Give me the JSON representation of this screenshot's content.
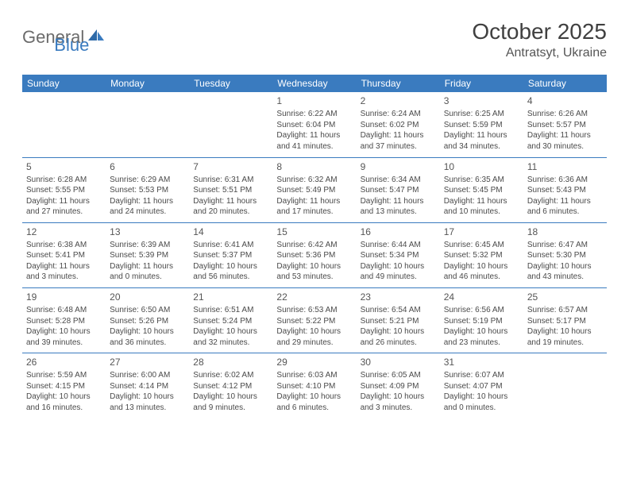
{
  "brand": {
    "general": "General",
    "blue": "Blue"
  },
  "header": {
    "month": "October 2025",
    "location": "Antratsyt, Ukraine"
  },
  "colors": {
    "accent": "#3a7bbf",
    "text": "#4a4a4a",
    "bg": "#ffffff"
  },
  "weekdays": [
    "Sunday",
    "Monday",
    "Tuesday",
    "Wednesday",
    "Thursday",
    "Friday",
    "Saturday"
  ],
  "weeks": [
    [
      null,
      null,
      null,
      {
        "d": "1",
        "sr": "Sunrise: 6:22 AM",
        "ss": "Sunset: 6:04 PM",
        "dl1": "Daylight: 11 hours",
        "dl2": "and 41 minutes."
      },
      {
        "d": "2",
        "sr": "Sunrise: 6:24 AM",
        "ss": "Sunset: 6:02 PM",
        "dl1": "Daylight: 11 hours",
        "dl2": "and 37 minutes."
      },
      {
        "d": "3",
        "sr": "Sunrise: 6:25 AM",
        "ss": "Sunset: 5:59 PM",
        "dl1": "Daylight: 11 hours",
        "dl2": "and 34 minutes."
      },
      {
        "d": "4",
        "sr": "Sunrise: 6:26 AM",
        "ss": "Sunset: 5:57 PM",
        "dl1": "Daylight: 11 hours",
        "dl2": "and 30 minutes."
      }
    ],
    [
      {
        "d": "5",
        "sr": "Sunrise: 6:28 AM",
        "ss": "Sunset: 5:55 PM",
        "dl1": "Daylight: 11 hours",
        "dl2": "and 27 minutes."
      },
      {
        "d": "6",
        "sr": "Sunrise: 6:29 AM",
        "ss": "Sunset: 5:53 PM",
        "dl1": "Daylight: 11 hours",
        "dl2": "and 24 minutes."
      },
      {
        "d": "7",
        "sr": "Sunrise: 6:31 AM",
        "ss": "Sunset: 5:51 PM",
        "dl1": "Daylight: 11 hours",
        "dl2": "and 20 minutes."
      },
      {
        "d": "8",
        "sr": "Sunrise: 6:32 AM",
        "ss": "Sunset: 5:49 PM",
        "dl1": "Daylight: 11 hours",
        "dl2": "and 17 minutes."
      },
      {
        "d": "9",
        "sr": "Sunrise: 6:34 AM",
        "ss": "Sunset: 5:47 PM",
        "dl1": "Daylight: 11 hours",
        "dl2": "and 13 minutes."
      },
      {
        "d": "10",
        "sr": "Sunrise: 6:35 AM",
        "ss": "Sunset: 5:45 PM",
        "dl1": "Daylight: 11 hours",
        "dl2": "and 10 minutes."
      },
      {
        "d": "11",
        "sr": "Sunrise: 6:36 AM",
        "ss": "Sunset: 5:43 PM",
        "dl1": "Daylight: 11 hours",
        "dl2": "and 6 minutes."
      }
    ],
    [
      {
        "d": "12",
        "sr": "Sunrise: 6:38 AM",
        "ss": "Sunset: 5:41 PM",
        "dl1": "Daylight: 11 hours",
        "dl2": "and 3 minutes."
      },
      {
        "d": "13",
        "sr": "Sunrise: 6:39 AM",
        "ss": "Sunset: 5:39 PM",
        "dl1": "Daylight: 11 hours",
        "dl2": "and 0 minutes."
      },
      {
        "d": "14",
        "sr": "Sunrise: 6:41 AM",
        "ss": "Sunset: 5:37 PM",
        "dl1": "Daylight: 10 hours",
        "dl2": "and 56 minutes."
      },
      {
        "d": "15",
        "sr": "Sunrise: 6:42 AM",
        "ss": "Sunset: 5:36 PM",
        "dl1": "Daylight: 10 hours",
        "dl2": "and 53 minutes."
      },
      {
        "d": "16",
        "sr": "Sunrise: 6:44 AM",
        "ss": "Sunset: 5:34 PM",
        "dl1": "Daylight: 10 hours",
        "dl2": "and 49 minutes."
      },
      {
        "d": "17",
        "sr": "Sunrise: 6:45 AM",
        "ss": "Sunset: 5:32 PM",
        "dl1": "Daylight: 10 hours",
        "dl2": "and 46 minutes."
      },
      {
        "d": "18",
        "sr": "Sunrise: 6:47 AM",
        "ss": "Sunset: 5:30 PM",
        "dl1": "Daylight: 10 hours",
        "dl2": "and 43 minutes."
      }
    ],
    [
      {
        "d": "19",
        "sr": "Sunrise: 6:48 AM",
        "ss": "Sunset: 5:28 PM",
        "dl1": "Daylight: 10 hours",
        "dl2": "and 39 minutes."
      },
      {
        "d": "20",
        "sr": "Sunrise: 6:50 AM",
        "ss": "Sunset: 5:26 PM",
        "dl1": "Daylight: 10 hours",
        "dl2": "and 36 minutes."
      },
      {
        "d": "21",
        "sr": "Sunrise: 6:51 AM",
        "ss": "Sunset: 5:24 PM",
        "dl1": "Daylight: 10 hours",
        "dl2": "and 32 minutes."
      },
      {
        "d": "22",
        "sr": "Sunrise: 6:53 AM",
        "ss": "Sunset: 5:22 PM",
        "dl1": "Daylight: 10 hours",
        "dl2": "and 29 minutes."
      },
      {
        "d": "23",
        "sr": "Sunrise: 6:54 AM",
        "ss": "Sunset: 5:21 PM",
        "dl1": "Daylight: 10 hours",
        "dl2": "and 26 minutes."
      },
      {
        "d": "24",
        "sr": "Sunrise: 6:56 AM",
        "ss": "Sunset: 5:19 PM",
        "dl1": "Daylight: 10 hours",
        "dl2": "and 23 minutes."
      },
      {
        "d": "25",
        "sr": "Sunrise: 6:57 AM",
        "ss": "Sunset: 5:17 PM",
        "dl1": "Daylight: 10 hours",
        "dl2": "and 19 minutes."
      }
    ],
    [
      {
        "d": "26",
        "sr": "Sunrise: 5:59 AM",
        "ss": "Sunset: 4:15 PM",
        "dl1": "Daylight: 10 hours",
        "dl2": "and 16 minutes."
      },
      {
        "d": "27",
        "sr": "Sunrise: 6:00 AM",
        "ss": "Sunset: 4:14 PM",
        "dl1": "Daylight: 10 hours",
        "dl2": "and 13 minutes."
      },
      {
        "d": "28",
        "sr": "Sunrise: 6:02 AM",
        "ss": "Sunset: 4:12 PM",
        "dl1": "Daylight: 10 hours",
        "dl2": "and 9 minutes."
      },
      {
        "d": "29",
        "sr": "Sunrise: 6:03 AM",
        "ss": "Sunset: 4:10 PM",
        "dl1": "Daylight: 10 hours",
        "dl2": "and 6 minutes."
      },
      {
        "d": "30",
        "sr": "Sunrise: 6:05 AM",
        "ss": "Sunset: 4:09 PM",
        "dl1": "Daylight: 10 hours",
        "dl2": "and 3 minutes."
      },
      {
        "d": "31",
        "sr": "Sunrise: 6:07 AM",
        "ss": "Sunset: 4:07 PM",
        "dl1": "Daylight: 10 hours",
        "dl2": "and 0 minutes."
      },
      null
    ]
  ]
}
